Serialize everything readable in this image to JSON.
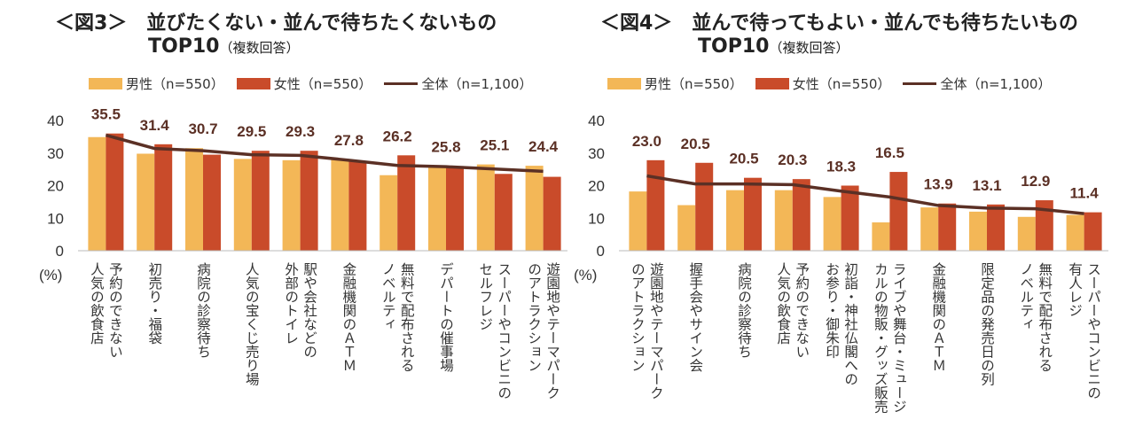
{
  "colors": {
    "male": "#f3b757",
    "female": "#c94b2a",
    "total": "#5b3025"
  },
  "chart_data": [
    {
      "type": "bar",
      "title": "＜図3＞　並びたくない・並んで待ちたくないもの",
      "title2": "TOP10",
      "subtitle": "（複数回答）",
      "unit": "(%)",
      "ylim": [
        0,
        40
      ],
      "yticks": [
        "0",
        "10",
        "20",
        "30",
        "40"
      ],
      "categories": [
        [
          "予約のできない",
          "人気の飲食店"
        ],
        [
          "初売り・福袋"
        ],
        [
          "病院の診察待ち"
        ],
        [
          "人気の宝くじ売り場"
        ],
        [
          "駅や会社などの",
          "外部のトイレ"
        ],
        [
          "金融機関のＡＴＭ"
        ],
        [
          "無料で配布される",
          "ノベルティ"
        ],
        [
          "デパートの催事場"
        ],
        [
          "スーパーやコンビニの",
          "セルフレジ"
        ],
        [
          "遊園地やテーマパーク",
          "のアトラクション"
        ]
      ],
      "series": [
        {
          "name": "男性（n=550）",
          "kind": "bar",
          "values": [
            34.9,
            29.8,
            31.5,
            28.2,
            27.8,
            28.0,
            23.2,
            25.6,
            26.5,
            26.1
          ]
        },
        {
          "name": "女性（n=550）",
          "kind": "bar",
          "values": [
            36.0,
            32.7,
            29.5,
            30.7,
            30.7,
            27.5,
            29.3,
            26.0,
            23.6,
            22.7
          ]
        },
        {
          "name": "全体（n=1,100）",
          "kind": "line",
          "values": [
            35.5,
            31.4,
            30.7,
            29.5,
            29.3,
            27.8,
            26.2,
            25.8,
            25.1,
            24.4
          ]
        }
      ],
      "data_labels": [
        "35.5",
        "31.4",
        "30.7",
        "29.5",
        "29.3",
        "27.8",
        "26.2",
        "25.8",
        "25.1",
        "24.4"
      ]
    },
    {
      "type": "bar",
      "title": "＜図4＞　並んで待ってもよい・並んでも待ちたいもの",
      "title2": "TOP10",
      "subtitle": "（複数回答）",
      "unit": "(%)",
      "ylim": [
        0,
        40
      ],
      "yticks": [
        "0",
        "10",
        "20",
        "30",
        "40"
      ],
      "categories": [
        [
          "遊園地やテーマパーク",
          "のアトラクション"
        ],
        [
          "握手会やサイン会"
        ],
        [
          "病院の診察待ち"
        ],
        [
          "予約のできない",
          "人気の飲食店"
        ],
        [
          "初詣・神社仏閣への",
          "お参り・御朱印"
        ],
        [
          "ライブや舞台・ミュージ",
          "カルの物販・グッズ販売"
        ],
        [
          "金融機関のＡＴＭ"
        ],
        [
          "限定品の発売日の列"
        ],
        [
          "無料で配布される",
          "ノベルティ"
        ],
        [
          "スーパーやコンビニの",
          "有人レジ"
        ]
      ],
      "series": [
        {
          "name": "男性（n=550）",
          "kind": "bar",
          "values": [
            18.2,
            14.0,
            18.6,
            18.6,
            16.5,
            8.7,
            13.3,
            12.0,
            10.4,
            11.0
          ]
        },
        {
          "name": "女性（n=550）",
          "kind": "bar",
          "values": [
            27.8,
            27.0,
            22.4,
            22.0,
            20.0,
            24.2,
            14.5,
            14.2,
            15.5,
            11.8
          ]
        },
        {
          "name": "全体（n=1,100）",
          "kind": "line",
          "values": [
            23.0,
            20.5,
            20.5,
            20.3,
            18.3,
            16.5,
            13.9,
            13.1,
            12.9,
            11.4
          ]
        }
      ],
      "data_labels": [
        "23.0",
        "20.5",
        "20.5",
        "20.3",
        "18.3",
        "16.5",
        "13.9",
        "13.1",
        "12.9",
        "11.4"
      ]
    }
  ]
}
